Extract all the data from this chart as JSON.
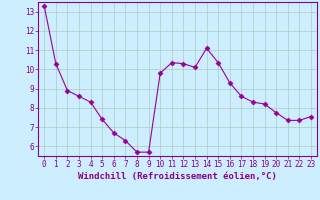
{
  "x": [
    0,
    1,
    2,
    3,
    4,
    5,
    6,
    7,
    8,
    9,
    10,
    11,
    12,
    13,
    14,
    15,
    16,
    17,
    18,
    19,
    20,
    21,
    22,
    23
  ],
  "y": [
    13.3,
    10.3,
    8.9,
    8.6,
    8.3,
    7.4,
    6.7,
    6.3,
    5.7,
    5.7,
    9.8,
    10.35,
    10.3,
    10.1,
    11.1,
    10.35,
    9.3,
    8.6,
    8.3,
    8.2,
    7.75,
    7.35,
    7.35,
    7.55
  ],
  "line_color": "#990099",
  "marker": "D",
  "marker_size": 2.5,
  "bg_color": "#cceeff",
  "grid_color": "#aaccbb",
  "xlabel": "Windchill (Refroidissement éolien,°C)",
  "xlabel_color": "#880088",
  "tick_color": "#880088",
  "spine_color": "#880088",
  "ylim": [
    5.5,
    13.5
  ],
  "xlim": [
    -0.5,
    23.5
  ],
  "yticks": [
    6,
    7,
    8,
    9,
    10,
    11,
    12,
    13
  ],
  "xticks": [
    0,
    1,
    2,
    3,
    4,
    5,
    6,
    7,
    8,
    9,
    10,
    11,
    12,
    13,
    14,
    15,
    16,
    17,
    18,
    19,
    20,
    21,
    22,
    23
  ],
  "tick_labelsize": 5.5,
  "xlabel_fontsize": 6.5,
  "xlabel_fontweight": "bold"
}
